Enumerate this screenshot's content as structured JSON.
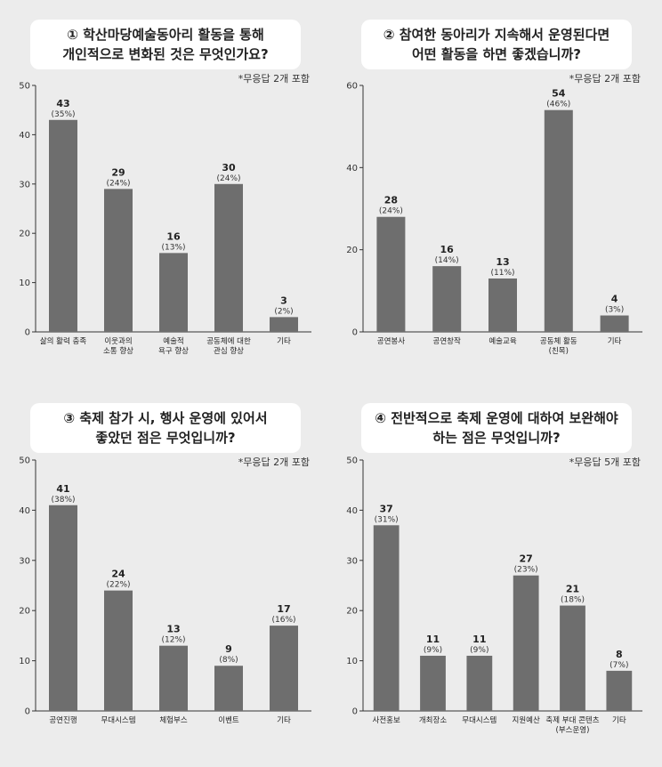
{
  "chart_data": [
    {
      "type": "bar",
      "title_lines": [
        "① 학산마당예술동아리 활동을 통해",
        "개인적으로 변화된 것은 무엇인가요?"
      ],
      "note": "*무응답 2개 포함",
      "categories": [
        [
          "삶의 활력 충족"
        ],
        [
          "이웃과의",
          "소통 향상"
        ],
        [
          "예술적",
          "욕구 향상"
        ],
        [
          "공동체에 대한",
          "관심 향상"
        ],
        [
          "기타"
        ]
      ],
      "values": [
        43,
        29,
        16,
        30,
        3
      ],
      "percents": [
        "(35%)",
        "(24%)",
        "(13%)",
        "(24%)",
        "(2%)"
      ],
      "ylim": [
        0,
        50
      ],
      "yticks": [
        0,
        10,
        20,
        30,
        40,
        50
      ]
    },
    {
      "type": "bar",
      "title_lines": [
        "② 참여한 동아리가 지속해서 운영된다면",
        "어떤 활동을 하면 좋겠습니까?"
      ],
      "note": "*무응답 2개 포함",
      "categories": [
        [
          "공연봉사"
        ],
        [
          "공연창작"
        ],
        [
          "예술교육"
        ],
        [
          "공동체 활동",
          "(친목)"
        ],
        [
          "기타"
        ]
      ],
      "values": [
        28,
        16,
        13,
        54,
        4
      ],
      "percents": [
        "(24%)",
        "(14%)",
        "(11%)",
        "(46%)",
        "(3%)"
      ],
      "ylim": [
        0,
        60
      ],
      "yticks": [
        0,
        20,
        40,
        60
      ]
    },
    {
      "type": "bar",
      "title_lines": [
        "③ 축제 참가 시, 행사 운영에 있어서",
        "좋았던 점은 무엇입니까?"
      ],
      "note": "*무응답 2개 포함",
      "categories": [
        [
          "공연진행"
        ],
        [
          "무대시스템"
        ],
        [
          "체험부스"
        ],
        [
          "이벤트"
        ],
        [
          "기타"
        ]
      ],
      "values": [
        41,
        24,
        13,
        9,
        17
      ],
      "percents": [
        "(38%)",
        "(22%)",
        "(12%)",
        "(8%)",
        "(16%)"
      ],
      "ylim": [
        0,
        50
      ],
      "yticks": [
        0,
        10,
        20,
        30,
        40,
        50
      ]
    },
    {
      "type": "bar",
      "title_lines": [
        "④ 전반적으로 축제 운영에 대하여 보완해야",
        "하는 점은 무엇입니까?"
      ],
      "note": "*무응답 5개 포함",
      "categories": [
        [
          "사전홍보"
        ],
        [
          "개최장소"
        ],
        [
          "무대시스템"
        ],
        [
          "지원예산"
        ],
        [
          "축제 부대 콘텐츠",
          "(부스운영)"
        ],
        [
          "기타"
        ]
      ],
      "values": [
        37,
        11,
        11,
        27,
        21,
        8
      ],
      "percents": [
        "(31%)",
        "(9%)",
        "(9%)",
        "(23%)",
        "(18%)",
        "(7%)"
      ],
      "ylim": [
        0,
        50
      ],
      "yticks": [
        0,
        10,
        20,
        30,
        40,
        50
      ]
    }
  ]
}
